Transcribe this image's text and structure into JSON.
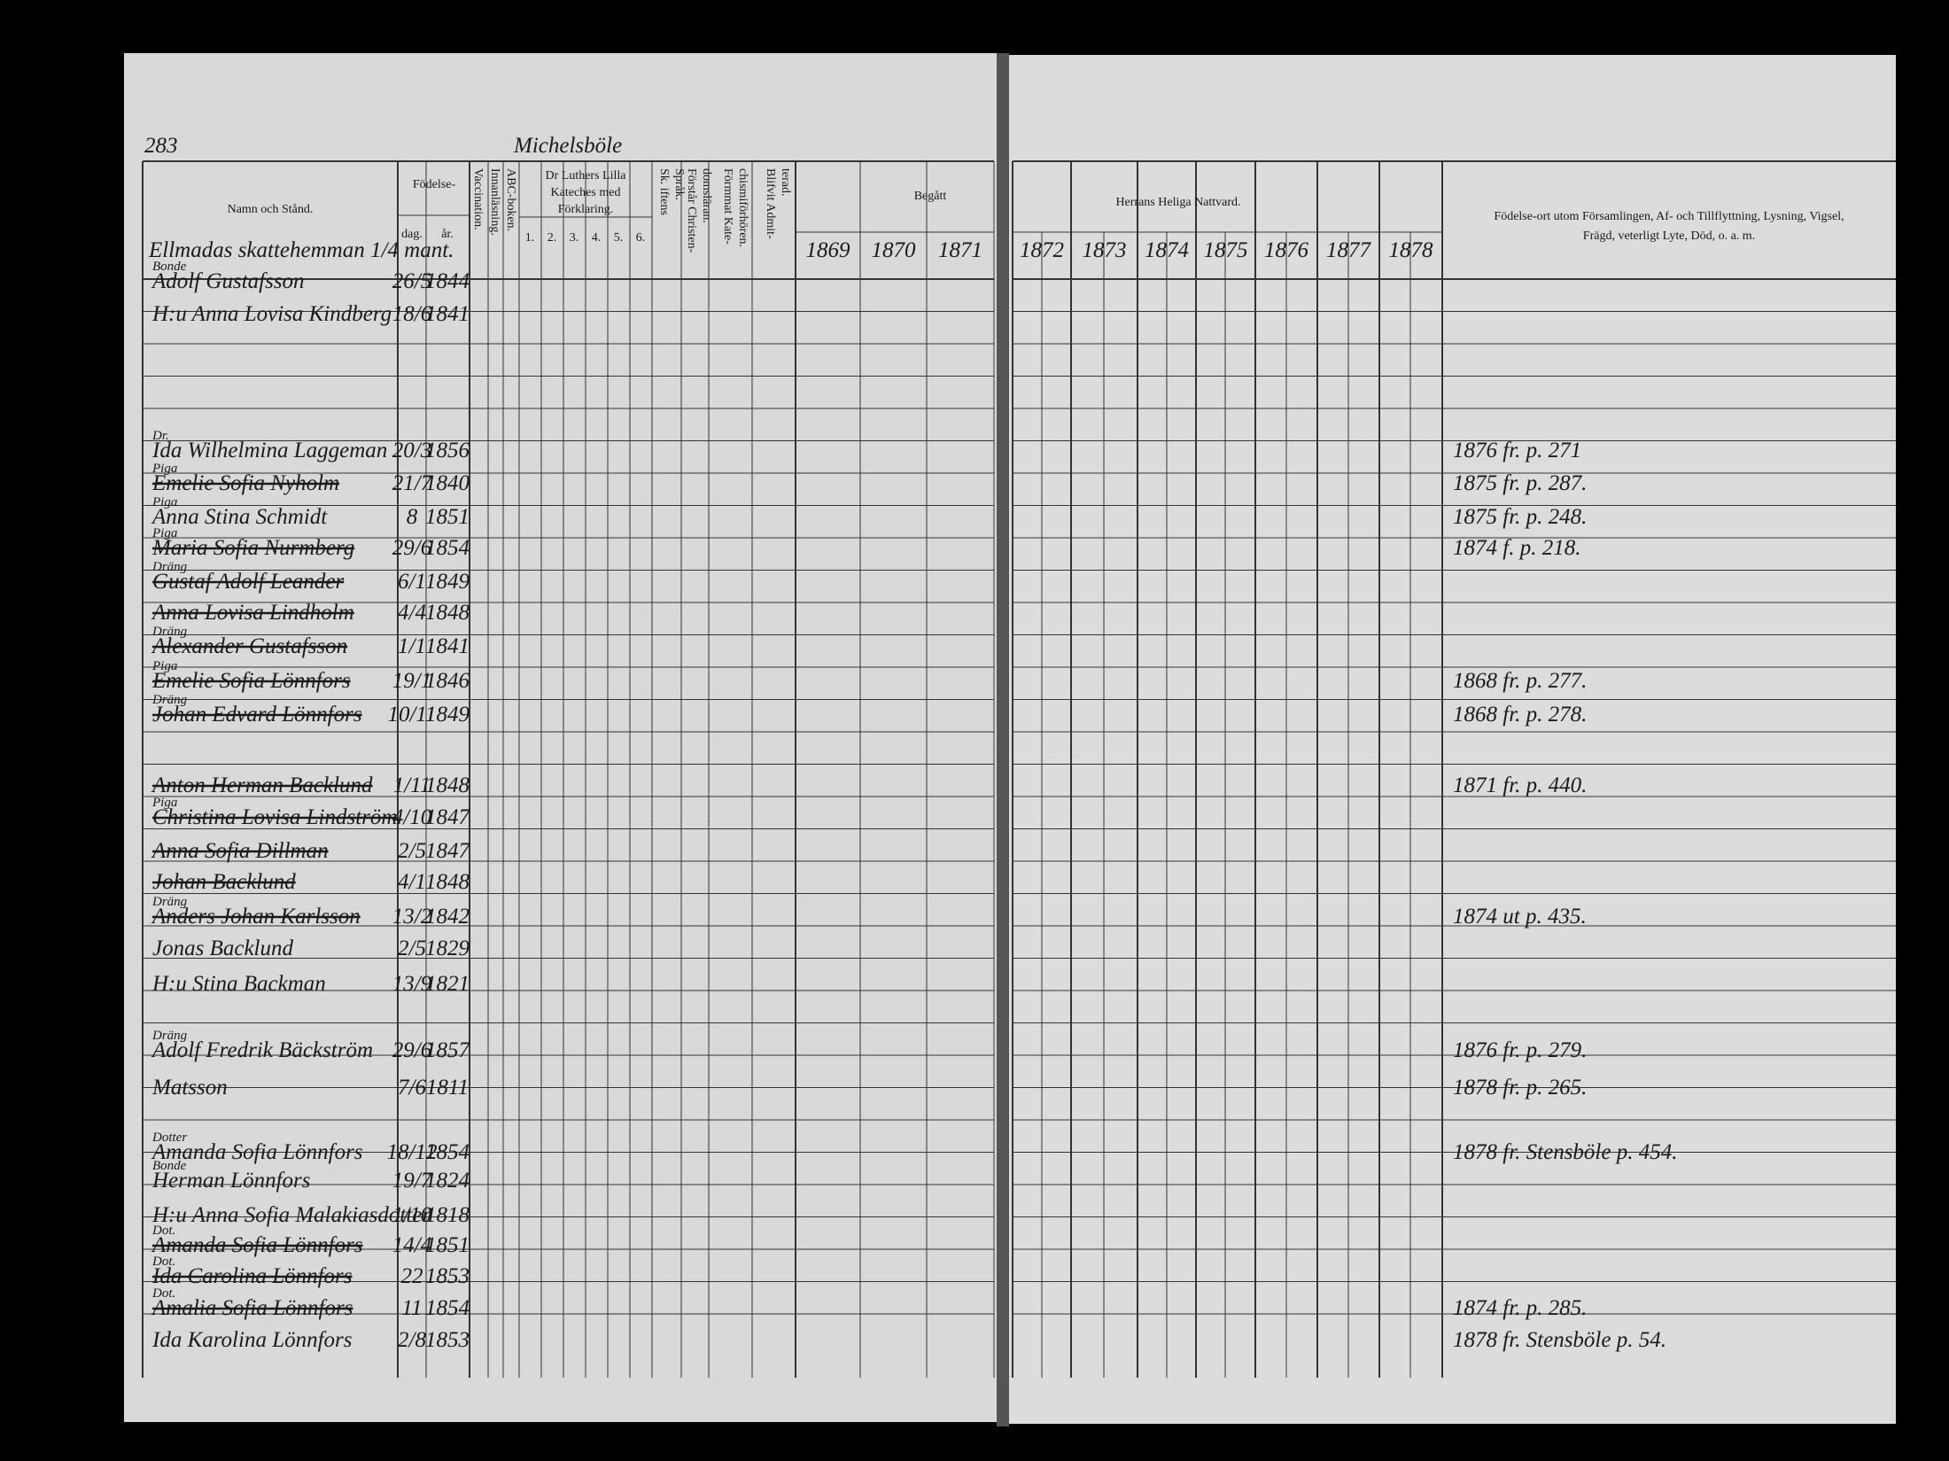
{
  "header": {
    "page_number": "283",
    "place": "Michelsböle",
    "farm": "Ellmadas skattehemman 1/4 mant."
  },
  "columns": {
    "name": "Namn och Stånd.",
    "birth": "Födelse-",
    "day": "dag.",
    "year": "år.",
    "vaccination": "Vaccination.",
    "reading": "Innanläsning.",
    "abc": "ABC-boken.",
    "luther": [
      "Dr Luthers Lilla",
      "Kateches med",
      "Förklaring."
    ],
    "luther_parts": [
      "1.",
      "2.",
      "3.",
      "4.",
      "5.",
      "6."
    ],
    "scripture": [
      "Sk. iftens",
      "Språk."
    ],
    "doctrine": [
      "Förstår Christen-",
      "domsläran."
    ],
    "catechism": [
      "Förmmat Kate-",
      "chismiförhören."
    ],
    "admitted": [
      "Blifvit Admit-",
      "terad."
    ],
    "begatt": "Begått",
    "communion": "Herrans Heliga Nattvard.",
    "remarks": [
      "Födelse-ort utom Församlingen, Af- och Tillflyttning, Lysning, Vigsel,",
      "Frägd, veterligt Lyte, Död, o. a. m."
    ]
  },
  "years": [
    "1869",
    "1870",
    "1871",
    "1872",
    "1873",
    "1874",
    "1875",
    "1876",
    "1877",
    "1878"
  ],
  "rows": [
    {
      "title": "Bonde",
      "name": "Adolf Gustafsson",
      "day": "26/5",
      "year": "1844"
    },
    {
      "name": "H:u Anna Lovisa Kindberg",
      "day": "18/6",
      "year": "1841"
    },
    {
      "title": "Dr.",
      "name": "Ida Wilhelmina Laggeman",
      "day": "20/3",
      "year": "1856",
      "remark": "1876 fr. p. 271"
    },
    {
      "title": "Piga",
      "name": "Emelie Sofia Nyholm",
      "day": "21/7",
      "year": "1840",
      "remark": "1875 fr. p. 287.",
      "struck": true
    },
    {
      "title": "Piga",
      "name": "Anna Stina Schmidt",
      "day": "8",
      "year": "1851",
      "remark": "1875 fr. p. 248."
    },
    {
      "title": "Piga",
      "name": "Maria Sofia Nurmberg",
      "day": "29/6",
      "year": "1854",
      "remark": "1874 f. p. 218.",
      "struck": true
    },
    {
      "title": "Dräng",
      "name": "Gustaf Adolf Leander",
      "day": "6/1",
      "year": "1849",
      "struck": true
    },
    {
      "name": "Anna Lovisa Lindholm",
      "day": "4/4",
      "year": "1848",
      "struck": true
    },
    {
      "title": "Dräng",
      "name": "Alexander Gustafsson",
      "day": "1/1",
      "year": "1841",
      "struck": true
    },
    {
      "title": "Piga",
      "name": "Emelie Sofia Lönnfors",
      "day": "19/1",
      "year": "1846",
      "remark": "1868 fr. p. 277.",
      "struck": true
    },
    {
      "title": "Dräng",
      "name": "Johan Edvard Lönnfors",
      "day": "10/11",
      "year": "1849",
      "remark": "1868 fr. p. 278.",
      "struck": true
    },
    {
      "name": "Anton Herman Backlund",
      "day": "1/11",
      "year": "1848",
      "remark": "1871 fr. p. 440.",
      "struck": true
    },
    {
      "title": "Piga",
      "name": "Christina Lovisa Lindström",
      "day": "4/10",
      "year": "1847",
      "struck": true
    },
    {
      "name": "Anna Sofia Dillman",
      "day": "2/5",
      "year": "1847",
      "struck": true
    },
    {
      "name": "Johan Backlund",
      "day": "4/1",
      "year": "1848",
      "struck": true
    },
    {
      "title": "Dräng",
      "name": "Anders Johan Karlsson",
      "day": "13/2",
      "year": "1842",
      "remark": "1874 ut p. 435.",
      "struck": true
    },
    {
      "name": "Jonas Backlund",
      "day": "2/5",
      "year": "1829"
    },
    {
      "name": "H:u Stina Backman",
      "day": "13/9",
      "year": "1821"
    },
    {
      "title": "Dräng",
      "name": "Adolf Fredrik Bäckström",
      "day": "29/6",
      "year": "1857",
      "remark": "1876 fr. p. 279."
    },
    {
      "name": "Matsson",
      "day": "7/6",
      "year": "1811",
      "remark": "1878 fr. p. 265."
    },
    {
      "title": "Dotter",
      "name": "Amanda Sofia Lönnfors",
      "day": "18/12",
      "year": "1854",
      "remark": "1878 fr. Stensböle p. 454."
    },
    {
      "title": "Bonde",
      "name": "Herman Lönnfors",
      "day": "19/7",
      "year": "1824"
    },
    {
      "name": "H:u Anna Sofia Malakiasdotter",
      "day": "1/10",
      "year": "1818"
    },
    {
      "title": "Dot.",
      "name": "Amanda Sofia Lönnfors",
      "day": "14/4",
      "year": "1851",
      "struck": true
    },
    {
      "title": "Dot.",
      "name": "Ida Carolina Lönnfors",
      "day": "22",
      "year": "1853",
      "struck": true
    },
    {
      "title": "Dot.",
      "name": "Amalia Sofia Lönnfors",
      "day": "11",
      "year": "1854",
      "remark": "1874 fr. p. 285.",
      "struck": true
    },
    {
      "name": "Ida Karolina Lönnfors",
      "day": "2/8",
      "year": "1853",
      "remark": "1878 fr. Stensböle p. 54."
    }
  ]
}
